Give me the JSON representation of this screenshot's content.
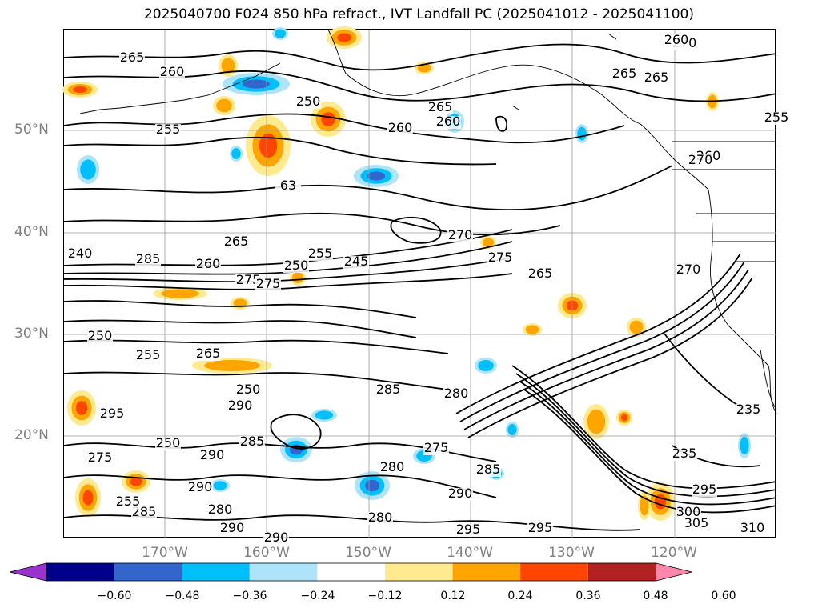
{
  "title": "2025040700 F024 850 hPa refract., IVT Landfall PC (2025041012 - 2025041100)",
  "lat_labels": [
    "50°N",
    "40°N",
    "30°N",
    "20°N"
  ],
  "lon_labels": [
    "170°W",
    "160°W",
    "150°W",
    "140°W",
    "130°W",
    "120°W"
  ],
  "colorbar": {
    "colors": [
      "#9933cc",
      "#00008b",
      "#3366cc",
      "#00bfff",
      "#aee4fa",
      "#ffffff",
      "#ffea8f",
      "#ffa500",
      "#ff4500",
      "#b22222",
      "#ff88aa"
    ],
    "tick_labels": [
      "−0.60",
      "−0.48",
      "−0.36",
      "−0.24",
      "−0.12",
      "0.12",
      "0.24",
      "0.36",
      "0.48",
      "0.60"
    ]
  },
  "contour_labels": [
    "265",
    "260",
    "255",
    "250",
    "265",
    "260",
    "255",
    "265",
    "260",
    "270",
    "240",
    "265",
    "275",
    "285",
    "260",
    "275",
    "250",
    "255",
    "245",
    "270",
    "275",
    "265",
    "270",
    "260",
    "250",
    "255",
    "265",
    "250",
    "285",
    "280",
    "275",
    "290",
    "295",
    "290",
    "290",
    "280",
    "285",
    "280",
    "275",
    "285",
    "290",
    "290",
    "295",
    "295",
    "295",
    "280",
    "290",
    "285",
    "235",
    "235",
    "300",
    "305",
    "310",
    "63",
    "270",
    "250",
    "255",
    "260",
    "265"
  ],
  "shaded_features": [
    {
      "kind": "positive",
      "region": "aleutian-north"
    },
    {
      "kind": "positive",
      "region": "gulf-of-alaska"
    },
    {
      "kind": "negative",
      "region": "north-pacific"
    },
    {
      "kind": "positive",
      "region": "subtropical"
    },
    {
      "kind": "negative",
      "region": "tropical"
    }
  ]
}
